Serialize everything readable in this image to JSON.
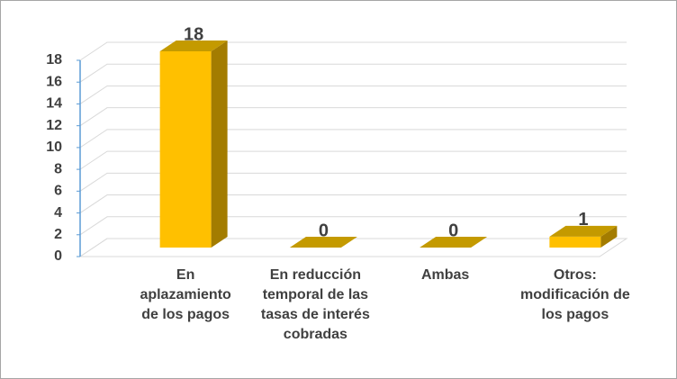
{
  "chart_data": {
    "type": "bar3d",
    "categories": [
      "En aplazamiento de los pagos",
      "En reducción temporal de las tasas de interés cobradas",
      "Ambas",
      "Otros: modificación de los pagos"
    ],
    "values": [
      18,
      0,
      0,
      1
    ],
    "color": "#ffc000",
    "ylim": [
      0,
      18
    ],
    "yticks": [
      0,
      2,
      4,
      6,
      8,
      10,
      12,
      14,
      16,
      18
    ],
    "grid": true
  }
}
